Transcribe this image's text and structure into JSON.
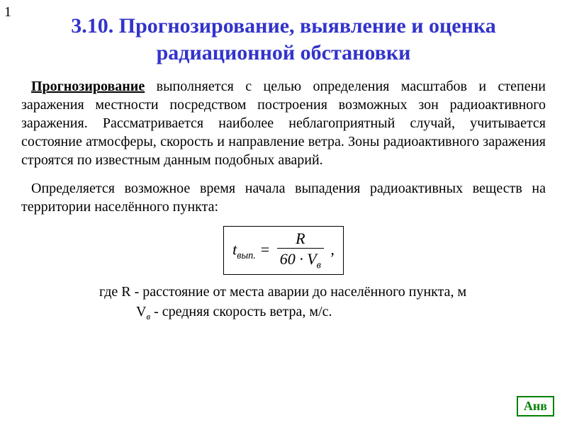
{
  "page_number": "1",
  "title": "3.10. Прогнозирование, выявление и оценка радиационной обстановки",
  "term": "Прогнозирование",
  "para1_rest": " выполняется с целью определения масштабов и степени заражения местности посредством построения возможных зон радиоактивного заражения. Рассматривается наиболее неблагоприятный случай, учитывается состояние атмосферы, скорость и направление ветра. Зоны радиоактивного заражения строятся по известным данным подобных аварий.",
  "para2": "Определяется возможное время начала выпадения радиоактивных веществ на территории населённого пункта:",
  "formula": {
    "lhs_var": "t",
    "lhs_sub": "вып.",
    "eq": " = ",
    "num": "R",
    "den_pre": "60 · ",
    "den_var": "V",
    "den_sub": "в",
    "trail": " ,"
  },
  "where_line1_pre": "где  R - расстояние от места аварии до населённого пункта, м",
  "where_line2_var": "V",
  "where_line2_sub": "в",
  "where_line2_rest": " - средняя скорость ветра, м/с.",
  "nav_label": "Анв",
  "colors": {
    "title": "#3333cc",
    "body_text": "#000000",
    "background": "#ffffff",
    "nav_border": "#008000",
    "nav_text": "#008000"
  },
  "fontsizes": {
    "title": 30,
    "body": 20,
    "formula": 22,
    "nav": 18
  }
}
